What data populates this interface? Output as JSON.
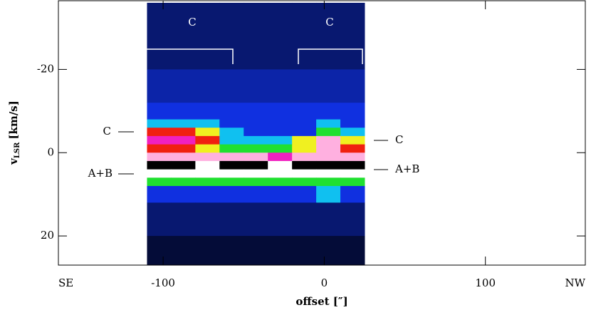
{
  "chart_data": {
    "type": "heatmap",
    "xlabel": "offset [″]",
    "ylabel_parts": [
      "v",
      "LSR",
      "[km/s]"
    ],
    "corner_labels": [
      "SE",
      "NW"
    ],
    "xlim": [
      -165,
      162
    ],
    "ylim": [
      27,
      -36.5
    ],
    "xticks": [
      -100,
      0,
      100
    ],
    "yticks": [
      -20,
      0,
      20
    ],
    "x_bins": [
      -110,
      -95,
      -80,
      -65,
      -50,
      -35,
      -20,
      -5,
      10,
      25
    ],
    "y_bins": [
      -36,
      -28,
      -20,
      -12,
      -8,
      -6,
      -4,
      -2,
      0,
      2,
      4,
      6,
      8,
      12,
      20,
      27
    ],
    "z": [
      [
        1,
        1,
        1,
        1,
        1,
        1,
        1,
        1,
        1
      ],
      [
        1,
        1,
        1,
        1,
        1,
        1,
        1,
        1,
        1
      ],
      [
        1.5,
        1.5,
        1.5,
        1.5,
        1.5,
        1.5,
        1.5,
        1.5,
        1.5
      ],
      [
        2,
        2,
        2,
        2,
        2,
        2,
        2,
        2,
        2
      ],
      [
        3,
        3,
        3,
        2,
        2,
        2,
        2,
        3,
        2
      ],
      [
        6,
        6,
        5,
        3,
        2,
        2,
        2,
        4,
        3
      ],
      [
        7,
        7,
        6,
        3,
        3,
        3,
        5,
        8,
        5
      ],
      [
        6,
        6,
        5,
        4,
        4,
        4,
        5,
        8,
        6
      ],
      [
        8,
        8,
        8,
        8,
        8,
        7,
        8,
        8,
        8
      ],
      [
        10,
        10,
        9,
        10,
        10,
        9,
        10,
        10,
        10
      ],
      [
        9,
        9,
        9,
        9,
        9,
        9,
        9,
        9,
        9
      ],
      [
        4,
        4,
        4,
        4,
        4,
        4,
        4,
        4,
        4
      ],
      [
        2,
        2,
        2,
        2,
        2,
        2,
        2,
        3,
        2
      ],
      [
        1,
        1,
        1,
        1,
        1,
        1,
        1,
        1,
        1
      ],
      [
        0.5,
        0.5,
        0.5,
        0.5,
        0.5,
        0.5,
        0.5,
        0.5,
        0.5
      ]
    ],
    "color_stops": [
      0,
      2,
      3,
      4,
      5,
      6,
      7,
      8,
      9,
      10
    ],
    "colors": [
      "#000000",
      "#1030e0",
      "#10c0f0",
      "#20e030",
      "#f0f020",
      "#f02010",
      "#f020c0",
      "#ffb0e0",
      "#ffffff",
      "#000000"
    ],
    "annotations": {
      "top_left": "C",
      "top_right": "C",
      "left_c": "C",
      "left_ab": "A+B",
      "right_c": "C",
      "right_ab": "A+B"
    }
  }
}
